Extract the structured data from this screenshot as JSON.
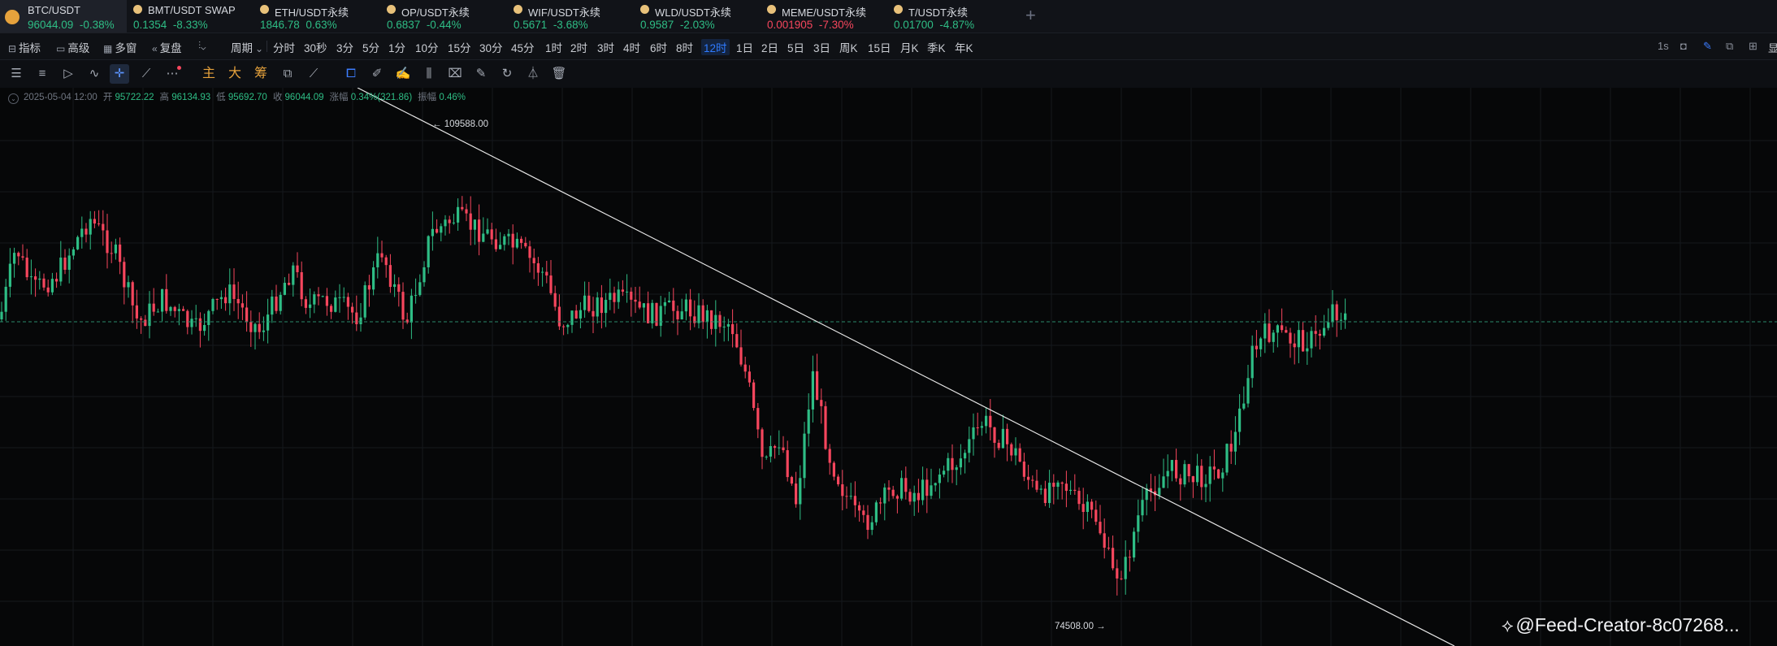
{
  "tabs": [
    {
      "symbol": "BTC/USDT",
      "price": "96044.09",
      "change": "-0.38%",
      "trend": "down-green",
      "active": true
    },
    {
      "symbol": "BMT/USDT SWAP",
      "price": "0.1354",
      "change": "-8.33%",
      "trend": "up"
    },
    {
      "symbol": "ETH/USDT永续",
      "price": "1846.78",
      "change": "0.63%",
      "trend": "up"
    },
    {
      "symbol": "OP/USDT永续",
      "price": "0.6837",
      "change": "-0.44%",
      "trend": "up"
    },
    {
      "symbol": "WIF/USDT永续",
      "price": "0.5671",
      "change": "-3.68%",
      "trend": "up"
    },
    {
      "symbol": "WLD/USDT永续",
      "price": "0.9587",
      "change": "-2.03%",
      "trend": "up"
    },
    {
      "symbol": "MEME/USDT永续",
      "price": "0.001905",
      "change": "-7.30%",
      "trend": "down"
    },
    {
      "symbol": "T/USDT永续",
      "price": "0.01700",
      "change": "-4.87%",
      "trend": "up"
    }
  ],
  "add_tab_label": "+",
  "toolbar": {
    "indicators": "指标",
    "advanced": "高级",
    "multi_window": "多窗",
    "replay": "复盘",
    "period": "周期",
    "intervals": [
      "分时",
      "30秒",
      "3分",
      "5分",
      "1分",
      "10分",
      "15分",
      "30分",
      "45分",
      "1时",
      "2时",
      "3时",
      "4时",
      "6时",
      "8时",
      "12时",
      "1日",
      "2日",
      "5日",
      "3日",
      "周K",
      "15日",
      "月K",
      "季K",
      "年K"
    ],
    "active_interval": "12时",
    "speed": "1s",
    "right_cut": "显"
  },
  "drawing_tools": {
    "main": "主",
    "large": "大",
    "chips": "筹"
  },
  "ohlc": {
    "date": "2025-05-04 12:00",
    "open_label": "开",
    "open": "95722.22",
    "high_label": "高",
    "high": "96134.93",
    "low_label": "低",
    "low": "95692.70",
    "close_label": "收",
    "close": "96044.09",
    "change_label": "涨幅",
    "change": "0.34%(321.86)",
    "amplitude_label": "振幅",
    "amplitude": "0.46%"
  },
  "chart_annotations": {
    "high_marker": "← 109588.00",
    "low_marker": "74508.00 →"
  },
  "colors": {
    "up": "#2ebd85",
    "down": "#f6465d",
    "accent": "#2f7bff"
  },
  "watermark": "@Feed-Creator-8c07268..."
}
